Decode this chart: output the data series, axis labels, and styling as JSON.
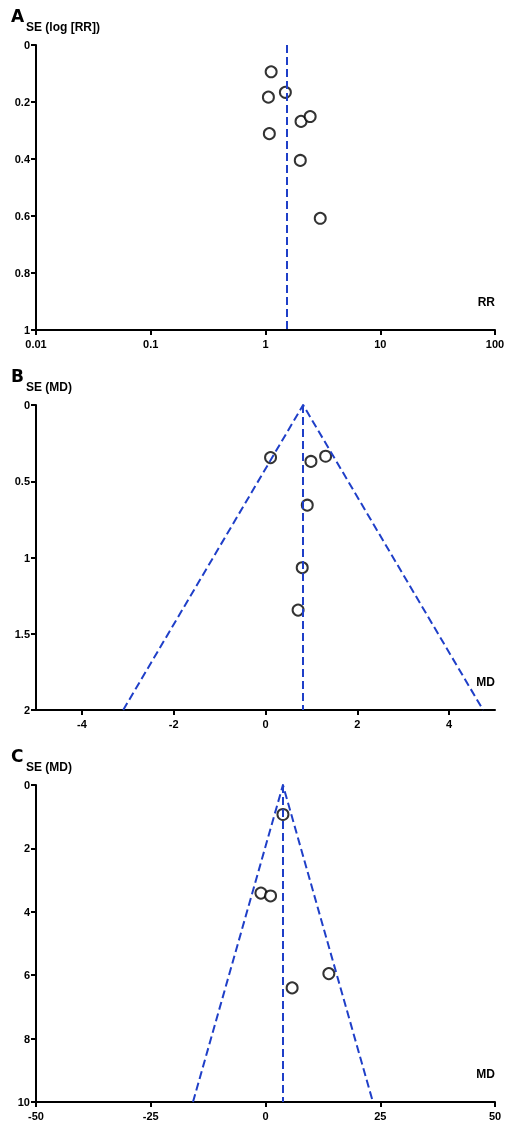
{
  "chart_data": [
    {
      "type": "scatter",
      "title": "A",
      "xlabel": "RR",
      "ylabel": "SE (log [RR])",
      "log": "x",
      "xlim": [
        0.01,
        100
      ],
      "xticks": [
        0.01,
        0.1,
        1,
        10,
        100
      ],
      "ylim": [
        1,
        0
      ],
      "yticks": [
        0,
        0.2,
        0.4,
        0.6,
        0.8,
        1
      ],
      "grid": false,
      "marker": "circle",
      "series": [
        {
          "color": "#000000",
          "x": [
            1.12,
            1.06,
            1.49,
            1.08,
            2.04,
            2.45,
            2.01,
            3.0
          ],
          "values": [
            0.094,
            0.183,
            0.166,
            0.311,
            0.268,
            0.251,
            0.405,
            0.608
          ]
        }
      ],
      "ref_lines": [
        {
          "axis": "x",
          "value": 1.52,
          "color": "#1f3fc8",
          "line_style": "dashed"
        }
      ]
    },
    {
      "type": "scatter",
      "title": "B",
      "xlabel": "MD",
      "ylabel": "SE (MD)",
      "xlim": [
        -5,
        5
      ],
      "xticks": [
        -4,
        -2,
        0,
        2,
        4
      ],
      "ylim": [
        2,
        0
      ],
      "yticks": [
        0,
        0.5,
        1,
        1.5,
        2
      ],
      "grid": false,
      "marker": "circle",
      "series": [
        {
          "color": "#000000",
          "x": [
            0.11,
            0.99,
            1.31,
            0.91,
            0.8,
            0.71
          ],
          "values": [
            0.345,
            0.37,
            0.336,
            0.657,
            1.067,
            1.345
          ]
        },
        {
          "type": "line",
          "color": "#1f3fc8",
          "line_style": "dashed",
          "marker": "none",
          "x": [
            -3.1,
            0.82,
            4.74
          ],
          "values": [
            2,
            0,
            2
          ]
        }
      ],
      "ref_lines": [
        {
          "axis": "x",
          "value": 0.82,
          "color": "#1f3fc8",
          "line_style": "dashed"
        }
      ]
    },
    {
      "type": "scatter",
      "title": "C",
      "xlabel": "MD",
      "ylabel": "SE (MD)",
      "xlim": [
        -50,
        50
      ],
      "xticks": [
        -50,
        -25,
        0,
        25,
        50
      ],
      "ylim": [
        10,
        0
      ],
      "yticks": [
        0,
        2,
        4,
        6,
        8,
        10
      ],
      "grid": false,
      "marker": "circle",
      "series": [
        {
          "color": "#000000",
          "x": [
            3.8,
            -1.0,
            1.1,
            13.8,
            5.8
          ],
          "values": [
            0.93,
            3.41,
            3.5,
            5.95,
            6.4
          ]
        },
        {
          "type": "line",
          "color": "#1f3fc8",
          "line_style": "dashed",
          "marker": "none",
          "x": [
            -15.8,
            3.8,
            23.4
          ],
          "values": [
            10,
            0,
            10
          ]
        }
      ],
      "ref_lines": [
        {
          "axis": "x",
          "value": 3.8,
          "color": "#1f3fc8",
          "line_style": "dashed"
        }
      ]
    }
  ]
}
